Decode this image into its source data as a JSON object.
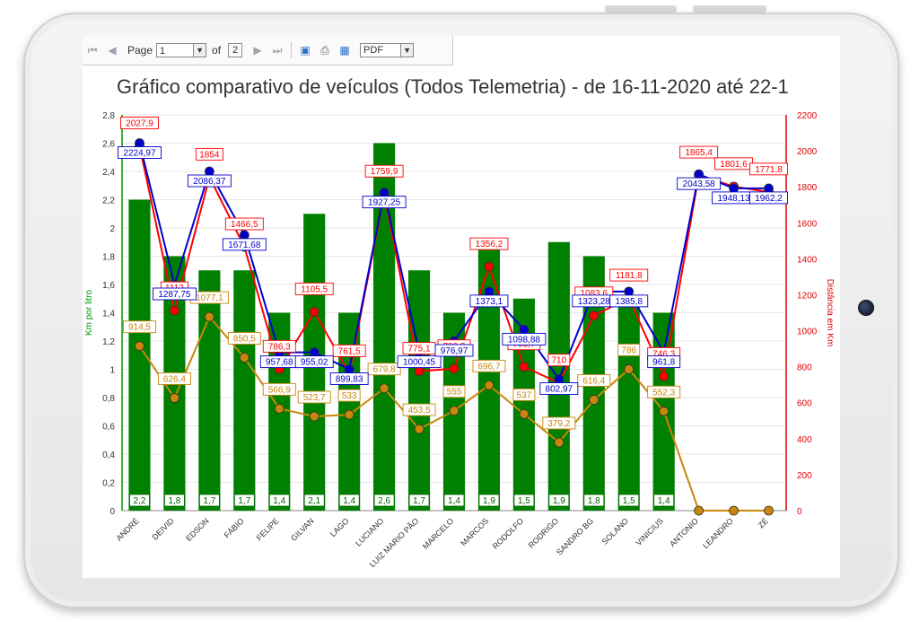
{
  "toolbar": {
    "page_label": "Page",
    "page_value": "1",
    "of_label": "of",
    "total_pages": "2",
    "export_format": "PDF",
    "icons": [
      "first-page-icon",
      "prev-page-icon",
      "next-page-icon",
      "last-page-icon",
      "save-icon",
      "print-icon",
      "table-icon"
    ]
  },
  "chart_data": {
    "type": "bar",
    "title": "Gráfico comparativo de veículos (Todos Telemetria) - de 16-11-2020 até 22-1",
    "ylabel": "Km por litro",
    "y2label": "Distância em Km",
    "ylim": [
      0,
      2.8
    ],
    "y2lim": [
      0,
      2200
    ],
    "grid": true,
    "categories": [
      "ANDRÉ",
      "DEIVID",
      "EDSON",
      "FÁBIO",
      "FELIPE",
      "GILVAN",
      "LAGO",
      "LUCIANO",
      "LUIZ MARIO PÃO",
      "MARCELO",
      "MARCOS",
      "RODOLFO",
      "RODRIGO",
      "SANDRO BG",
      "SOLANO",
      "VINICIUS",
      "ANTONIO",
      "LEANDRO",
      "ZÉ"
    ],
    "bars": {
      "values": [
        2.2,
        1.8,
        1.7,
        1.7,
        1.4,
        2.1,
        1.4,
        2.6,
        1.7,
        1.4,
        1.9,
        1.5,
        1.9,
        1.8,
        1.5,
        1.4,
        null,
        null,
        null
      ],
      "labels": [
        "2,2",
        "1,8",
        "1,7",
        "1,7",
        "1,4",
        "2,1",
        "1,4",
        "2,6",
        "1,7",
        "1,4",
        "1,9",
        "1,5",
        "1,9",
        "1,8",
        "1,5",
        "1,4",
        "",
        "",
        ""
      ],
      "color": "#008000",
      "axis": "left"
    },
    "series": [
      {
        "color": "#0000cc",
        "axis": "left",
        "values": [
          2.6,
          1.6,
          2.4,
          1.95,
          1.12,
          1.12,
          1.0,
          2.25,
          1.12,
          1.2,
          1.55,
          1.28,
          0.93,
          1.55,
          1.55,
          1.12,
          2.38,
          2.28,
          2.28
        ],
        "labels": [
          "2224,97",
          "1287,75",
          "2086,37",
          "1671,68",
          "957,68",
          "955,02",
          "899,83",
          "1927,25",
          "1000,45",
          "976,97",
          "1373,1",
          "1098,88",
          "802,97",
          "1323,28",
          "1385,8",
          "961,8",
          "2043,58",
          "1948,13",
          "1962,2"
        ]
      },
      {
        "color": "#ff0000",
        "axis": "right",
        "values": [
          2027.9,
          1112,
          1854,
          1466.5,
          786.3,
          1105.5,
          761.5,
          1759.9,
          775.1,
          789.3,
          1356.2,
          799.7,
          710,
          1083.6,
          1181.8,
          746.3,
          1865.4,
          1801.6,
          1771.8
        ],
        "labels": [
          "2027,9",
          "1112",
          "1854",
          "1466,5",
          "786,3",
          "1105,5",
          "761,5",
          "1759,9",
          "775,1",
          "789,3",
          "1356,2",
          "799,7",
          "710",
          "1083,6",
          "1181,8",
          "746,3",
          "1865,4",
          "1801,6",
          "1771,8"
        ]
      },
      {
        "color": "#c8860a",
        "axis": "right",
        "values": [
          914.5,
          626.4,
          1077.1,
          850.5,
          566.9,
          523.7,
          533,
          679.8,
          453.5,
          555,
          696.7,
          537,
          379.2,
          616.4,
          786,
          552.3,
          0,
          0,
          0
        ],
        "labels": [
          "914,5",
          "626,4",
          "1077,1",
          "850,5",
          "566,9",
          "523,7",
          "533",
          "679,8",
          "453,5",
          "555",
          "696,7",
          "537",
          "379,2",
          "616,4",
          "786",
          "552,3",
          "",
          "",
          ""
        ]
      }
    ],
    "left_ticks": [
      "0",
      "0,2",
      "0,4",
      "0,6",
      "0,8",
      "1",
      "1,2",
      "1,4",
      "1,6",
      "1,8",
      "2",
      "2,2",
      "2,4",
      "2,6",
      "2,8"
    ],
    "right_ticks": [
      "0",
      "200",
      "400",
      "600",
      "800",
      "1000",
      "1200",
      "1400",
      "1600",
      "1800",
      "2000",
      "2200"
    ]
  }
}
